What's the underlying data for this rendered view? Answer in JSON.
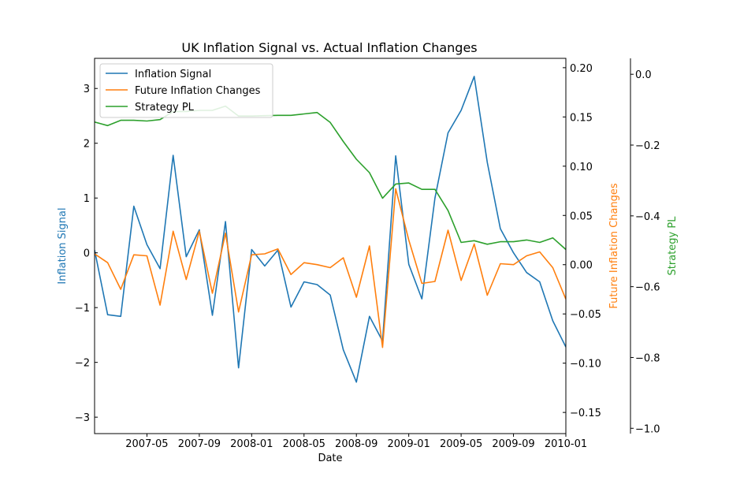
{
  "chart_data": {
    "type": "line",
    "title": "UK Inflation Signal vs. Actual Inflation Changes",
    "xlabel": "Date",
    "x_range": [
      "2007-01-01",
      "2010-01-01"
    ],
    "x_ticks": [
      "2007-05",
      "2007-09",
      "2008-01",
      "2008-05",
      "2008-09",
      "2009-01",
      "2009-05",
      "2009-09",
      "2010-01"
    ],
    "x": [
      "2007-01",
      "2007-02",
      "2007-03",
      "2007-04",
      "2007-05",
      "2007-06",
      "2007-07",
      "2007-08",
      "2007-09",
      "2007-10",
      "2007-11",
      "2007-12",
      "2008-01",
      "2008-02",
      "2008-03",
      "2008-04",
      "2008-05",
      "2008-06",
      "2008-07",
      "2008-08",
      "2008-09",
      "2008-10",
      "2008-11",
      "2008-12",
      "2009-01",
      "2009-02",
      "2009-03",
      "2009-04",
      "2009-05",
      "2009-06",
      "2009-07",
      "2009-08",
      "2009-09",
      "2009-10",
      "2009-11",
      "2009-12",
      "2010-01"
    ],
    "legend_position": "top-left",
    "axes": {
      "left": {
        "label": "Inflation Signal",
        "color": "#1f77b4",
        "ylim": [
          -3.3,
          3.55
        ],
        "ticks": [
          "−3",
          "−2",
          "−1",
          "0",
          "1",
          "2",
          "3"
        ]
      },
      "right1": {
        "label": "Future Inflation Changes",
        "color": "#ff7f0e",
        "ylim": [
          -0.1715,
          0.2095
        ],
        "ticks": [
          "−0.15",
          "−0.10",
          "−0.05",
          "0.00",
          "0.05",
          "0.10",
          "0.15",
          "0.20"
        ]
      },
      "right2": {
        "label": "Strategy PL",
        "color": "#2ca02c",
        "ylim": [
          -1.015,
          0.045
        ],
        "ticks": [
          "−1.0",
          "−0.8",
          "−0.6",
          "−0.4",
          "−0.2",
          "0.0"
        ]
      }
    },
    "series": [
      {
        "name": "Inflation Signal",
        "axis": "left",
        "color": "#1f77b4",
        "values": [
          0.05,
          -1.13,
          -1.16,
          0.85,
          0.15,
          -0.29,
          1.78,
          -0.07,
          0.42,
          -1.14,
          0.57,
          -2.1,
          0.06,
          -0.24,
          0.05,
          -0.99,
          -0.53,
          -0.58,
          -0.77,
          -1.77,
          -2.36,
          -1.16,
          -1.61,
          1.77,
          -0.21,
          -0.84,
          1.0,
          2.19,
          2.6,
          3.22,
          1.65,
          0.44,
          0.0,
          -0.36,
          -0.53,
          -1.24,
          -1.72
        ]
      },
      {
        "name": "Future Inflation Changes",
        "axis": "right1",
        "color": "#ff7f0e",
        "values": [
          0.011,
          0.002,
          -0.025,
          0.01,
          0.009,
          -0.041,
          0.034,
          -0.015,
          0.034,
          -0.029,
          0.032,
          -0.048,
          0.01,
          0.011,
          0.016,
          -0.01,
          0.002,
          0.0,
          -0.003,
          0.007,
          -0.033,
          0.019,
          -0.084,
          0.077,
          0.025,
          -0.019,
          -0.017,
          0.035,
          -0.016,
          0.021,
          -0.031,
          0.001,
          0.0,
          0.009,
          0.013,
          -0.003,
          -0.035
        ]
      },
      {
        "name": "Strategy PL",
        "axis": "right2",
        "color": "#2ca02c",
        "values": [
          -0.135,
          -0.145,
          -0.13,
          -0.13,
          -0.132,
          -0.128,
          -0.105,
          -0.105,
          -0.102,
          -0.102,
          -0.09,
          -0.118,
          -0.118,
          -0.117,
          -0.116,
          -0.116,
          -0.112,
          -0.108,
          -0.136,
          -0.19,
          -0.24,
          -0.278,
          -0.35,
          -0.31,
          -0.307,
          -0.325,
          -0.325,
          -0.385,
          -0.475,
          -0.47,
          -0.48,
          -0.473,
          -0.473,
          -0.468,
          -0.475,
          -0.462,
          -0.495
        ]
      }
    ]
  }
}
